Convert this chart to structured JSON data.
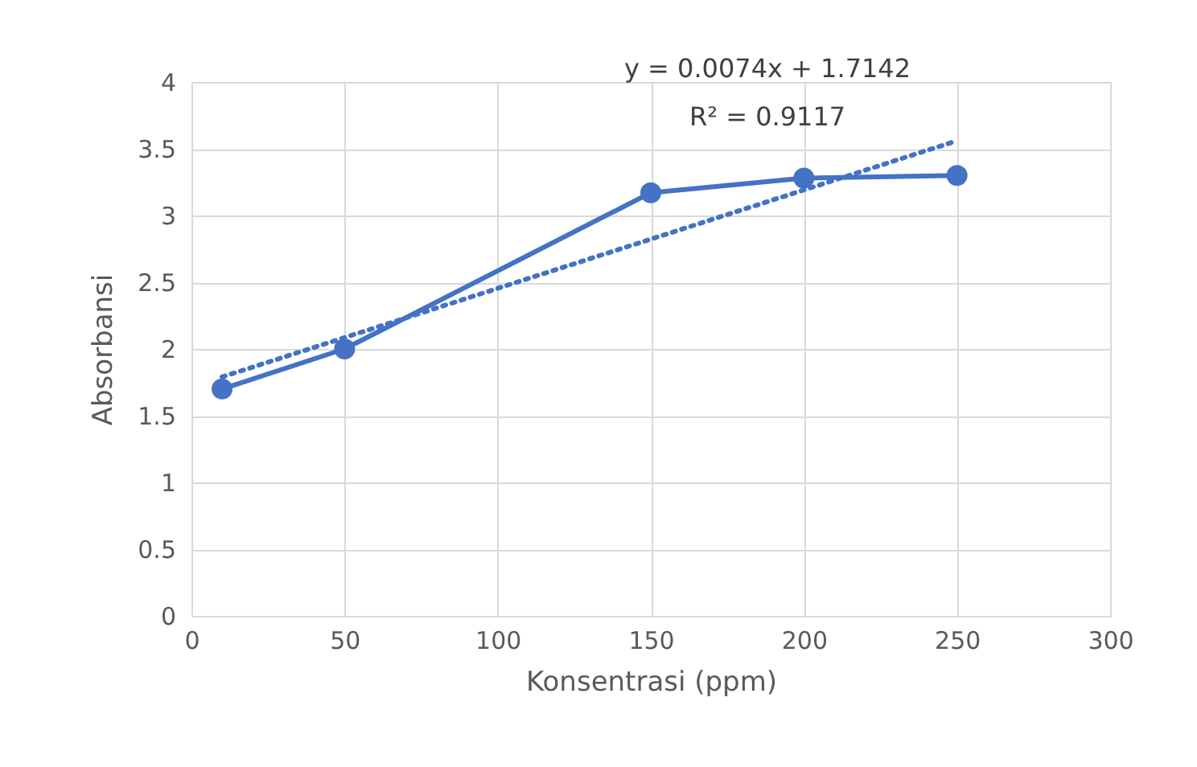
{
  "chart_data": {
    "type": "line",
    "xlabel": "Konsentrasi (ppm)",
    "ylabel": "Absorbansi",
    "annotations": [
      "y = 0.0074x + 1.7142",
      "R² = 0.9117"
    ],
    "x": [
      10,
      50,
      150,
      200,
      250
    ],
    "series": [
      {
        "color": "#4472c4",
        "values": [
          1.7,
          2.0,
          3.17,
          3.28,
          3.3
        ],
        "marker": "circle",
        "line_style": "solid"
      },
      {
        "type": "line",
        "color": "#4472c4",
        "x": [
          10,
          250
        ],
        "values": [
          1.79,
          3.56
        ],
        "marker": "none",
        "line_style": "dotted"
      }
    ],
    "xlim": [
      0,
      300
    ],
    "xticks": [
      0,
      50,
      100,
      150,
      200,
      250,
      300
    ],
    "ylim": [
      0,
      4
    ],
    "yticks": [
      0,
      0.5,
      1,
      1.5,
      2,
      2.5,
      3,
      3.5,
      4
    ],
    "grid": true
  }
}
